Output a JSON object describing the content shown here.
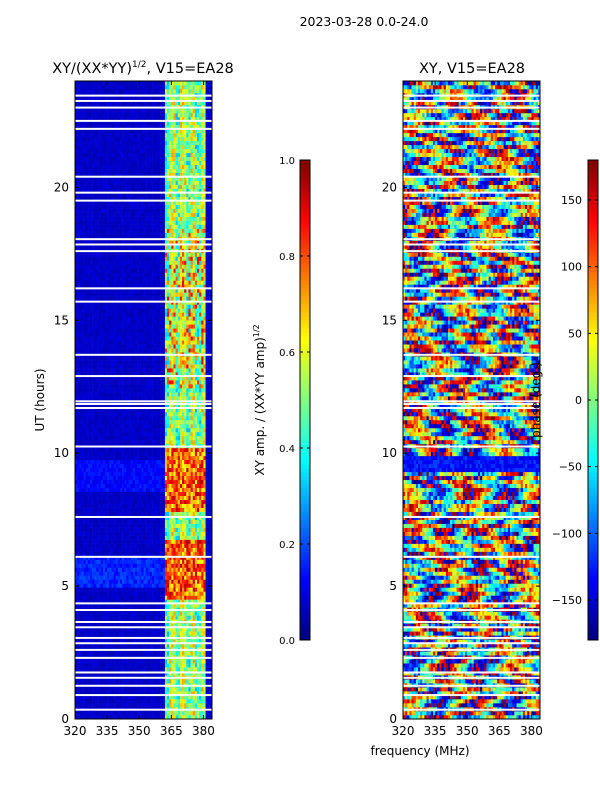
{
  "figure": {
    "suptitle": "2023-03-28 0.0-24.0",
    "shared_xlabel": "frequency (MHz)"
  },
  "chart_data": [
    {
      "type": "heatmap",
      "title": "XY/(XX*YY)^{1/2}, V15=EA28",
      "title_main": "XY/(XX*YY)",
      "title_exp": "1/2",
      "title_tail": ", V15=EA28",
      "xlabel": "",
      "ylabel": "UT (hours)",
      "xlim": [
        320,
        384
      ],
      "ylim": [
        0,
        24
      ],
      "xticks": [
        "320",
        "335",
        "350",
        "365",
        "380"
      ],
      "xtick_values": [
        320,
        335,
        350,
        365,
        380
      ],
      "yticks": [
        "0",
        "5",
        "10",
        "15",
        "20"
      ],
      "ytick_values": [
        0,
        5,
        10,
        15,
        20
      ],
      "colorbar": {
        "label": "XY amp. / (XX*YY amp)^{1/2}",
        "label_main": "XY amp. / (XX*YY amp)",
        "label_exp": "1/2",
        "vmin": 0.0,
        "vmax": 1.0,
        "ticks": [
          "0.0",
          "0.2",
          "0.4",
          "0.6",
          "0.8",
          "1.0"
        ],
        "tick_values": [
          0.0,
          0.2,
          0.4,
          0.6,
          0.8,
          1.0
        ]
      },
      "colormap": "jet",
      "description_of_values": "Low (~0.05) for 320-362 MHz; 0.3-0.9 in band 362-380 MHz; enhanced near UT 4.5-6.5 and 8-10"
    },
    {
      "type": "heatmap",
      "title": "XY, V15=EA28",
      "xlabel": "",
      "ylabel": "",
      "xlim": [
        320,
        384
      ],
      "ylim": [
        0,
        24
      ],
      "xticks": [
        "320",
        "335",
        "350",
        "365",
        "380"
      ],
      "xtick_values": [
        320,
        335,
        350,
        365,
        380
      ],
      "yticks": [
        "0",
        "5",
        "10",
        "15",
        "20"
      ],
      "ytick_values": [
        0,
        5,
        10,
        15,
        20
      ],
      "colorbar": {
        "label": "phase (deg.)",
        "vmin": -180,
        "vmax": 180,
        "ticks": [
          "150",
          "100",
          "50",
          "0",
          "−50",
          "−100",
          "−150"
        ],
        "tick_values": [
          150,
          100,
          50,
          0,
          -50,
          -100,
          -150
        ]
      },
      "colormap": "jet",
      "description_of_values": "Phase varies across full range -180 to 180 deg, noisy banded structure"
    }
  ],
  "flagged_ut_hours": [
    0.35,
    0.9,
    1.25,
    1.55,
    1.75,
    2.3,
    2.6,
    2.85,
    3.05,
    3.45,
    3.65,
    4.1,
    4.35,
    6.1,
    7.6,
    10.25,
    11.7,
    11.85,
    11.95,
    12.9,
    13.7,
    15.7,
    16.2,
    17.6,
    17.85,
    18.05,
    19.5,
    19.8,
    20.4,
    22.2,
    22.5,
    23.0,
    23.25,
    23.45
  ]
}
